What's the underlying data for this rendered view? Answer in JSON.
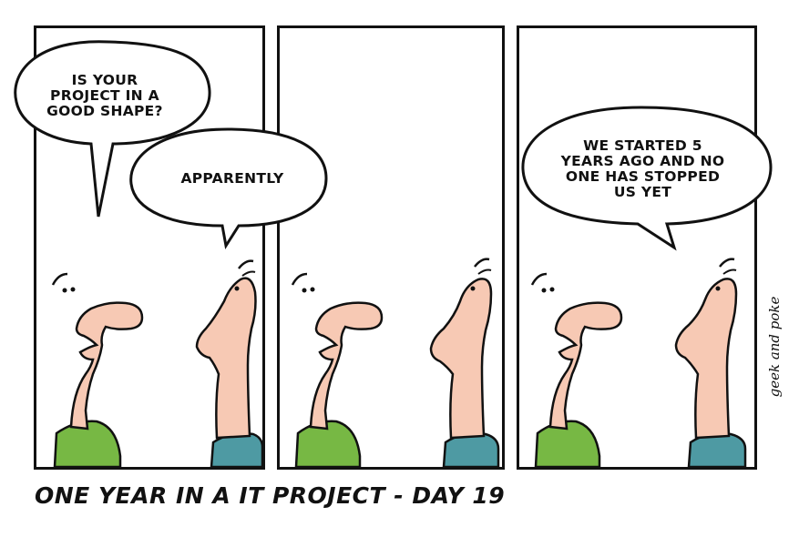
{
  "comic": {
    "caption": "ONE YEAR IN A IT PROJECT - DAY 19",
    "signature": "geek and poke",
    "panels": [
      {
        "bubbles": [
          {
            "speaker": "left",
            "text": "IS YOUR\nPROJECT IN A\nGOOD SHAPE?"
          },
          {
            "speaker": "right",
            "text": "APPARENTLY"
          }
        ]
      },
      {
        "bubbles": []
      },
      {
        "bubbles": [
          {
            "speaker": "right",
            "text": "WE STARTED 5\nYEARS AGO AND NO\nONE HAS STOPPED\nUS YET"
          }
        ]
      }
    ]
  },
  "colors": {
    "skin": "#f7c9b4",
    "left_shirt": "#77b844",
    "right_shirt": "#4e9aa3",
    "ink": "#111111"
  }
}
